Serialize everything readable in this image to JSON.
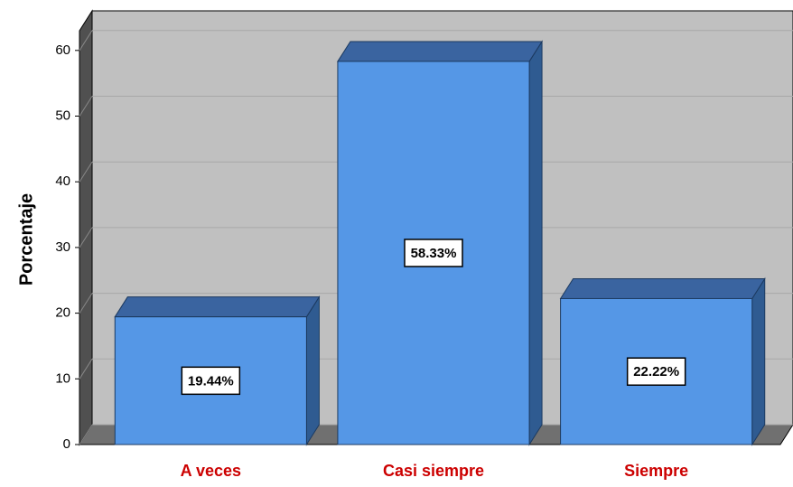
{
  "chart_data": {
    "type": "bar3d",
    "ylabel": "Porcentaje",
    "categories": [
      "A veces",
      "Casi siempre",
      "Siempre"
    ],
    "values": [
      19.44,
      58.33,
      22.22
    ],
    "value_labels": [
      "19.44%",
      "58.33%",
      "22.22%"
    ],
    "color": "#5597e6",
    "ylim": [
      0,
      63
    ],
    "yticks": [
      0,
      10,
      20,
      30,
      40,
      50,
      60
    ],
    "grid": true
  }
}
